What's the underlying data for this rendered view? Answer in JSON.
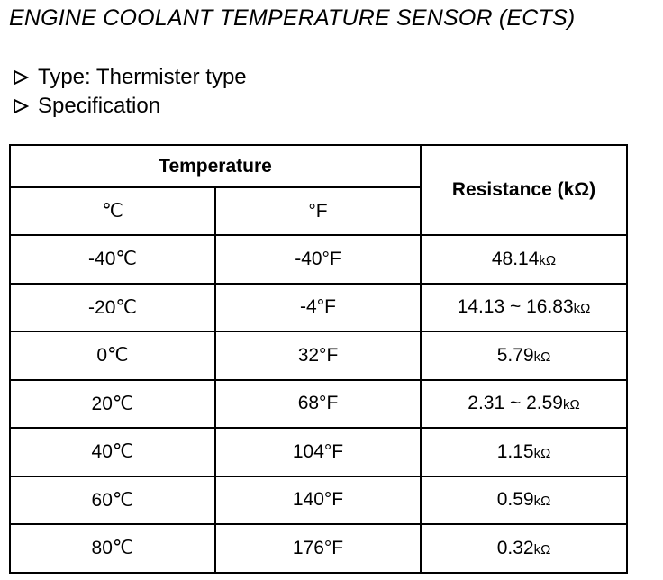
{
  "header": {
    "title": "ENGINE COOLANT TEMPERATURE SENSOR (ECTS)"
  },
  "bullets": [
    "Type:  Thermister type",
    "Specification"
  ],
  "table": {
    "group_header": "Temperature",
    "columns": [
      "℃",
      "°F",
      "Resistance (kΩ)"
    ],
    "rows": [
      [
        "-40℃",
        "-40°F",
        [
          "48.14",
          "kΩ"
        ]
      ],
      [
        "-20℃",
        "-4°F",
        [
          "14.13 ~ 16.83",
          "kΩ"
        ]
      ],
      [
        "0℃",
        "32°F",
        [
          "5.79",
          "kΩ"
        ]
      ],
      [
        "20℃",
        "68°F",
        [
          "2.31 ~ 2.59",
          "kΩ"
        ]
      ],
      [
        "40℃",
        "104°F",
        [
          "1.15",
          "kΩ"
        ]
      ],
      [
        "60℃",
        "140°F",
        [
          "0.59",
          "kΩ"
        ]
      ],
      [
        "80℃",
        "176°F",
        [
          "0.32",
          "kΩ"
        ]
      ]
    ]
  }
}
